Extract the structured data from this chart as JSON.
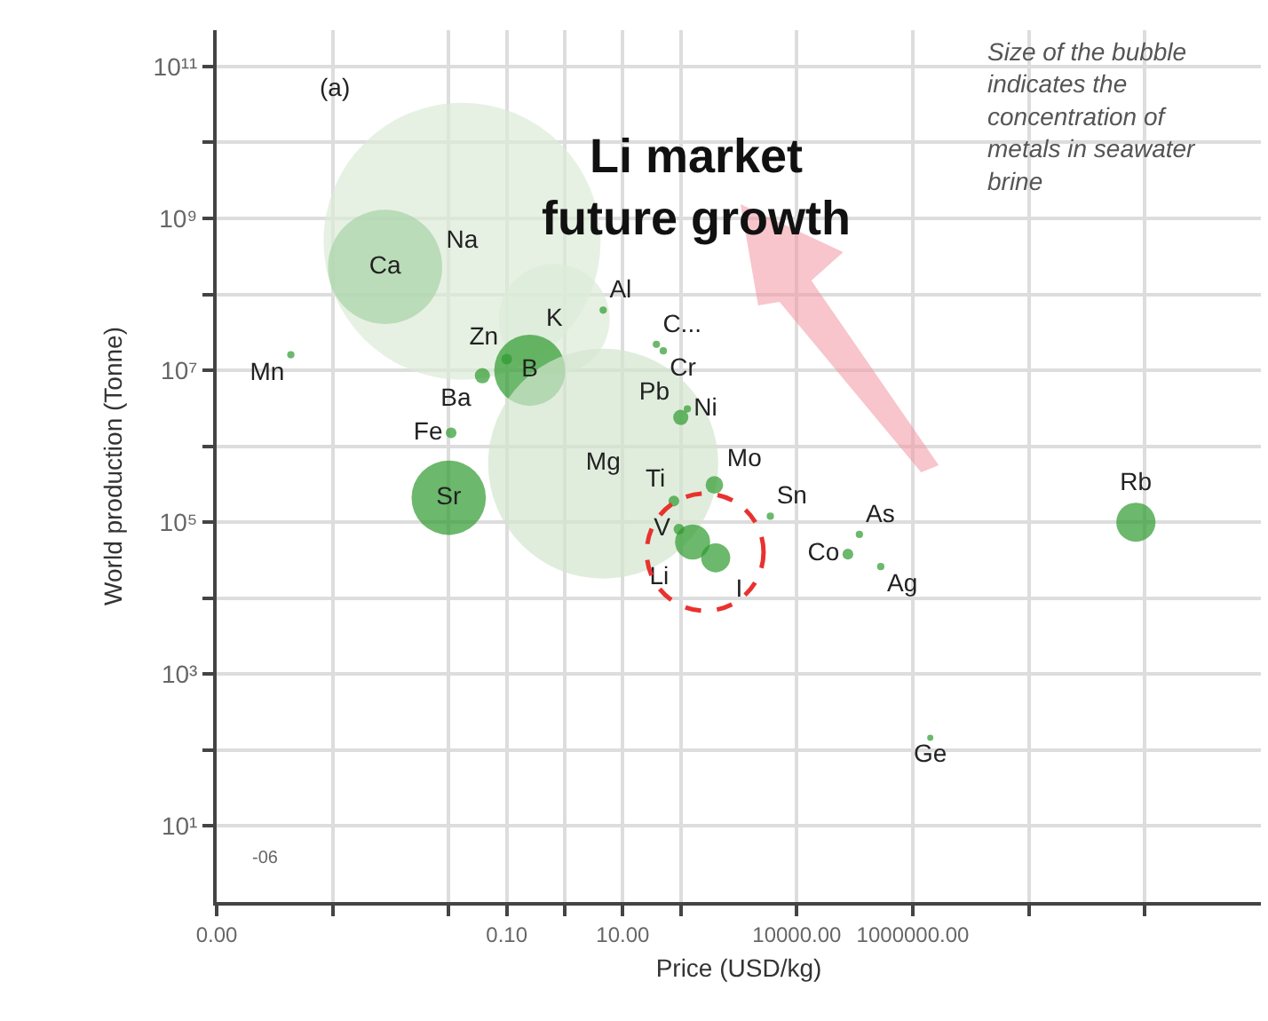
{
  "chart_data": {
    "type": "bubble",
    "xlabel": "Price (USD/kg)",
    "ylabel": "World production (Tonne)",
    "annotations": [
      "(a)",
      "Li market\nfuture growth",
      "Size of the bubble\nindicates the\nconcentration of\nmetals in seawater\nbrine",
      "-06"
    ],
    "xlim": [
      1e-06,
      1000000000000.0
    ],
    "xticks": [
      {
        "value": 1e-06,
        "label": "0.00"
      },
      {
        "value": 0.0001,
        "label": null
      },
      {
        "value": 0.01,
        "label": null
      },
      {
        "value": 0.1,
        "label": "0.10"
      },
      {
        "value": 1,
        "label": null
      },
      {
        "value": 10,
        "label": "10.00"
      },
      {
        "value": 100,
        "label": null
      },
      {
        "value": 10000,
        "label": "10000.00"
      },
      {
        "value": 1000000,
        "label": "1000000.00"
      },
      {
        "value": 100000000,
        "label": null
      },
      {
        "value": 10000000000,
        "label": null
      }
    ],
    "ylim": [
      1,
      300000000000.0
    ],
    "yticks": [
      {
        "value": 100000000000.0,
        "label": "10¹¹"
      },
      {
        "value": 10000000000.0,
        "label": null
      },
      {
        "value": 1000000000.0,
        "label": "10⁹"
      },
      {
        "value": 100000000.0,
        "label": null
      },
      {
        "value": 10000000.0,
        "label": "10⁷"
      },
      {
        "value": 1000000.0,
        "label": null
      },
      {
        "value": 100000.0,
        "label": "10⁵"
      },
      {
        "value": 10000.0,
        "label": null
      },
      {
        "value": 1000.0,
        "label": "10³"
      },
      {
        "value": 100,
        "label": null
      },
      {
        "value": 10,
        "label": "10¹"
      }
    ],
    "log": "xy",
    "grid": true,
    "series": [
      {
        "value_labels": [
          "Mn",
          "Ca",
          "Na",
          "K",
          "B",
          "Zn",
          "Ba",
          "Fe",
          "Sr",
          "Mg",
          "Al",
          "C...",
          "Cr",
          "Pb",
          "Ni",
          "Mo",
          "Ti",
          "V",
          "Li",
          "I",
          "Sn",
          "Co",
          "As",
          "Ag",
          "Ge",
          "Rb"
        ],
        "x": [
          1.9e-05,
          0.0008,
          0.017,
          0.66,
          0.25,
          0.1,
          0.038,
          0.011,
          0.01,
          4.6,
          4.6,
          38,
          50,
          100,
          130,
          380,
          76,
          93,
          160,
          400,
          3500,
          76000,
          120000,
          280000,
          2000000,
          7000000000
        ],
        "values": [
          16000000.0,
          230000000.0,
          500000000.0,
          47000000.0,
          10000000.0,
          14000000.0,
          8500000.0,
          1500000.0,
          210000.0,
          590000.0,
          62000000.0,
          22000000.0,
          18000000.0,
          2400000.0,
          3100000.0,
          310000.0,
          190000.0,
          81000.0,
          55000.0,
          34000.0,
          120000.0,
          38000.0,
          69000.0,
          26000.0,
          145,
          100000.0
        ],
        "sizes": [
          0.0007,
          0.17,
          1,
          0.16,
          0.066,
          0.0015,
          0.003,
          0.0015,
          0.072,
          0.69,
          0.0007,
          0.0007,
          0.0007,
          0.003,
          0.0007,
          0.004,
          0.0015,
          0.0015,
          0.016,
          0.011,
          0.0007,
          0.0015,
          0.0007,
          0.0007,
          0.0005,
          0.02
        ],
        "colors": [
          "#2e9a2e",
          "#2e9a2e",
          "#dcebd9",
          "#dcebd9",
          "#2e9a2e",
          "#2e9a2e",
          "#2e9a2e",
          "#2e9a2e",
          "#2e9a2e",
          "#d3e6cf",
          "#2e9a2e",
          "#2e9a2e",
          "#2e9a2e",
          "#2e9a2e",
          "#2e9a2e",
          "#2e9a2e",
          "#2e9a2e",
          "#2e9a2e",
          "#2e9a2e",
          "#2e9a2e",
          "#2e9a2e",
          "#2e9a2e",
          "#2e9a2e",
          "#2e9a2e",
          "#2e9a2e",
          "#2e9a2e"
        ]
      }
    ]
  }
}
